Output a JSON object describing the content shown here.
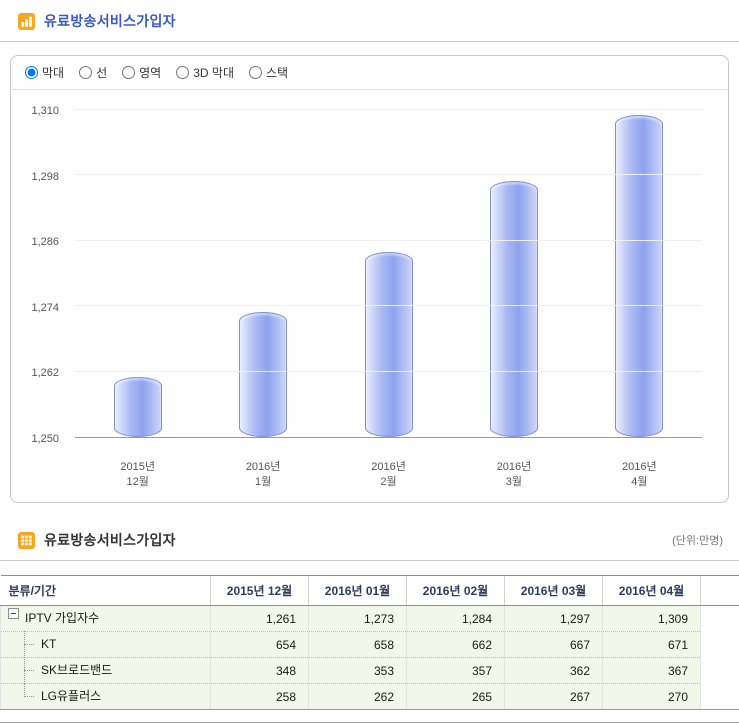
{
  "chart_panel": {
    "title": "유료방송서비스가입자",
    "chart_types": [
      {
        "label": "막대",
        "selected": true
      },
      {
        "label": "선",
        "selected": false
      },
      {
        "label": "영역",
        "selected": false
      },
      {
        "label": "3D 막대",
        "selected": false
      },
      {
        "label": "스택",
        "selected": false
      }
    ]
  },
  "chart_data": {
    "type": "bar",
    "title": "유료방송서비스가입자",
    "categories": [
      [
        "2015년",
        "12월"
      ],
      [
        "2016년",
        "1월"
      ],
      [
        "2016년",
        "2월"
      ],
      [
        "2016년",
        "3월"
      ],
      [
        "2016년",
        "4월"
      ]
    ],
    "values": [
      1261,
      1273,
      1284,
      1297,
      1309
    ],
    "xlabel": "",
    "ylabel": "",
    "ylim": [
      1250,
      1310
    ],
    "yticks": [
      1250,
      1262,
      1274,
      1286,
      1298,
      1310
    ],
    "ytick_labels": [
      "1,250",
      "1,262",
      "1,274",
      "1,286",
      "1,298",
      "1,310"
    ],
    "grid": true,
    "legend_position": "none",
    "bar_fill": "#9fb1f1",
    "bar_border": "#8091d2"
  },
  "table_panel": {
    "title": "유료방송서비스가입자",
    "unit_label": "(단위:만명)",
    "columns": [
      "분류/기간",
      "2015년 12월",
      "2016년 01월",
      "2016년 02월",
      "2016년 03월",
      "2016년 04월"
    ],
    "rows": [
      {
        "label": "IPTV 가입자수",
        "level": 0,
        "last": false,
        "values": [
          "1,261",
          "1,273",
          "1,284",
          "1,297",
          "1,309"
        ]
      },
      {
        "label": "KT",
        "level": 1,
        "last": false,
        "values": [
          "654",
          "658",
          "662",
          "667",
          "671"
        ]
      },
      {
        "label": "SK브로드밴드",
        "level": 1,
        "last": false,
        "values": [
          "348",
          "353",
          "357",
          "362",
          "367"
        ]
      },
      {
        "label": "LG유플러스",
        "level": 1,
        "last": true,
        "values": [
          "258",
          "262",
          "265",
          "267",
          "270"
        ]
      }
    ]
  },
  "colors": {
    "title_blue": "#3b5ac6",
    "icon_orange": "#f6a623",
    "row_green": "#f2f8e9",
    "header_text": "#2d3b5c"
  }
}
